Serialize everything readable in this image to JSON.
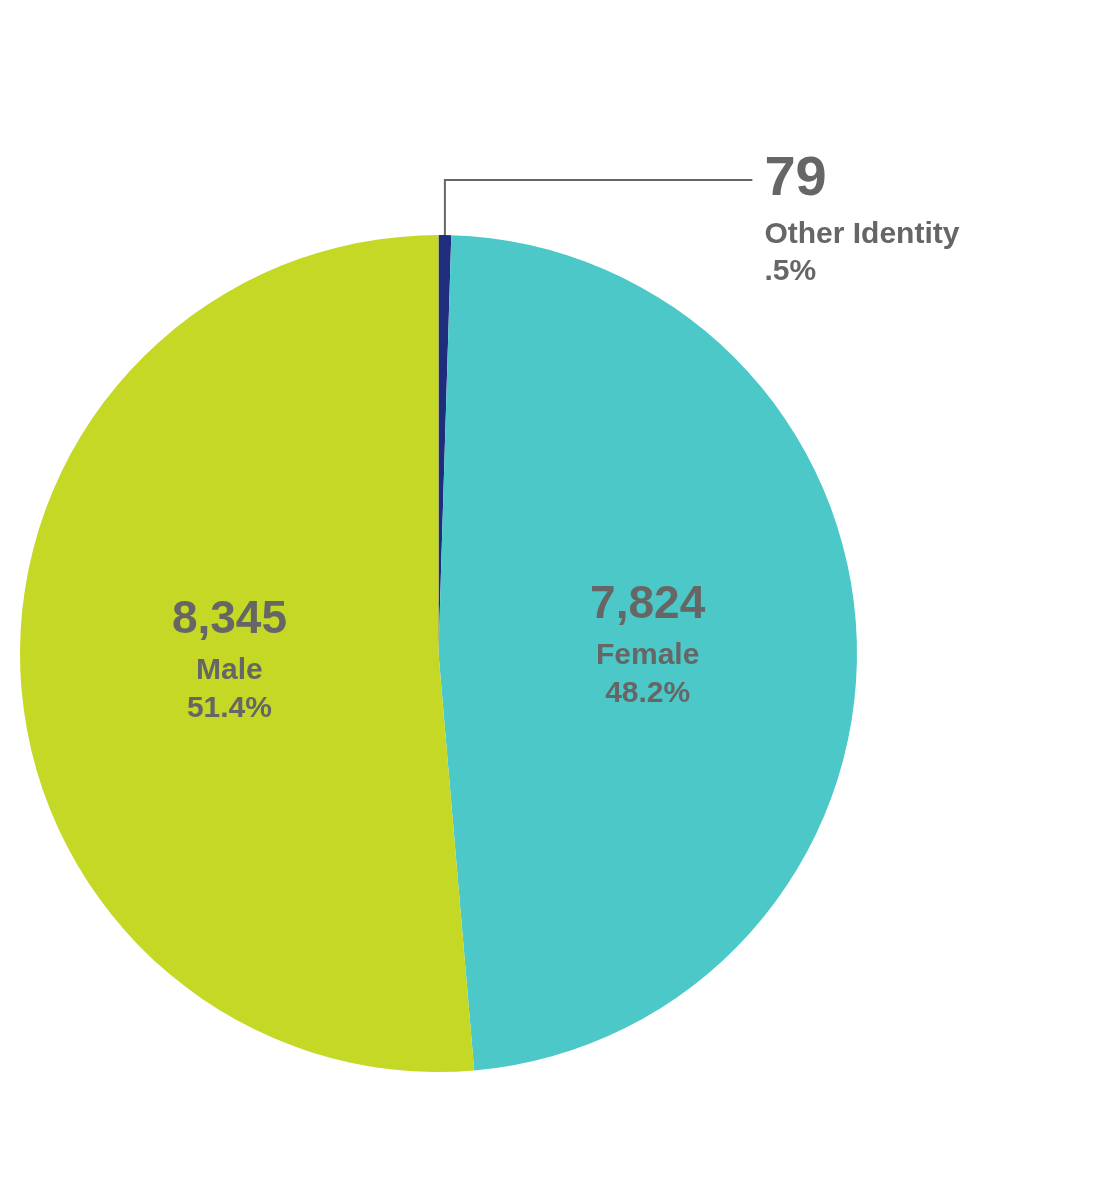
{
  "chart_data": {
    "type": "pie",
    "categories": [
      "Other Identity",
      "Female",
      "Male"
    ],
    "values": [
      79,
      7824,
      8345
    ],
    "value_labels": [
      "79",
      "7,824",
      "8,345"
    ],
    "shares": [
      0.5,
      48.2,
      51.4
    ],
    "share_labels": [
      ".5%",
      "48.2%",
      "51.4%"
    ],
    "colors": [
      "#1e2d7d",
      "#4dc8c8",
      "#c5d825"
    ],
    "data_labels": true
  }
}
